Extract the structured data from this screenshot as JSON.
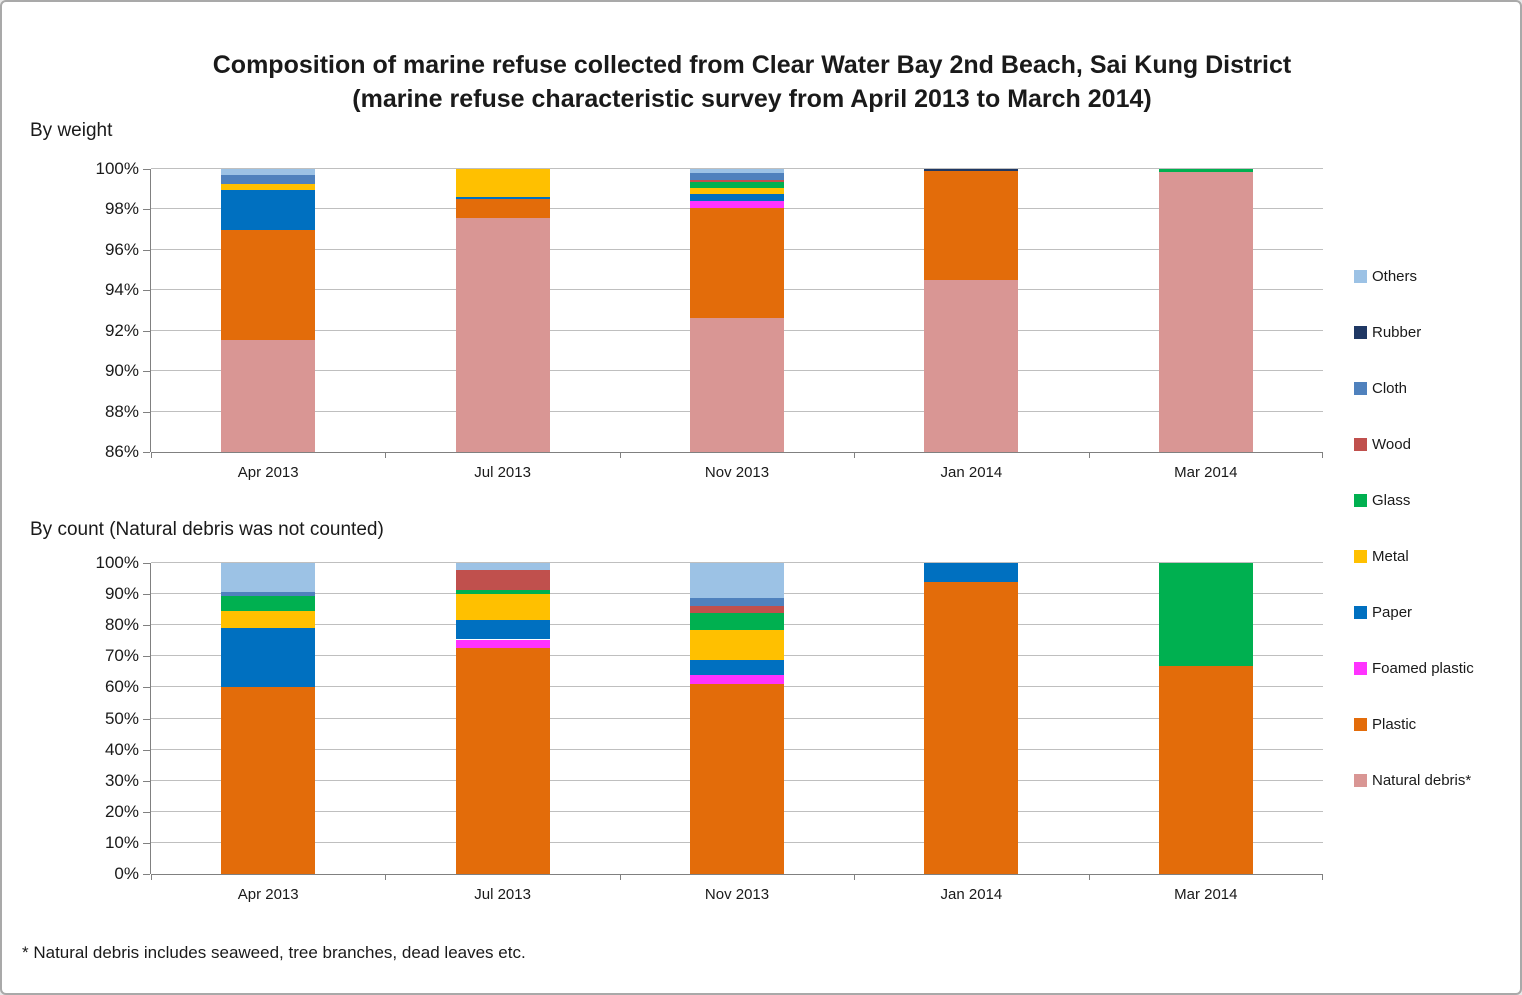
{
  "title": {
    "line1": "Composition of marine refuse collected from Clear Water Bay 2nd Beach, Sai Kung District",
    "line2": "(marine refuse characteristic survey from April 2013 to March 2014)"
  },
  "footnote": "* Natural debris includes seaweed, tree branches, dead leaves etc.",
  "colors": {
    "others": "#9CC2E5",
    "rubber": "#1F3864",
    "cloth": "#4F81BD",
    "wood": "#C0504D",
    "glass": "#00B050",
    "metal": "#FFC000",
    "paper": "#0070C0",
    "foamed_plastic": "#FF33FF",
    "plastic": "#E36C0A",
    "natural_debris": "#D99694",
    "gridline": "#BFBFBF",
    "axis": "#808080"
  },
  "legend": [
    {
      "key": "others",
      "label": "Others",
      "color": "#9CC2E5"
    },
    {
      "key": "rubber",
      "label": "Rubber",
      "color": "#1F3864"
    },
    {
      "key": "cloth",
      "label": "Cloth",
      "color": "#4F81BD"
    },
    {
      "key": "wood",
      "label": "Wood",
      "color": "#C0504D"
    },
    {
      "key": "glass",
      "label": "Glass",
      "color": "#00B050"
    },
    {
      "key": "metal",
      "label": "Metal",
      "color": "#FFC000"
    },
    {
      "key": "paper",
      "label": "Paper",
      "color": "#0070C0"
    },
    {
      "key": "foamed_plastic",
      "label": "Foamed plastic",
      "color": "#FF33FF"
    },
    {
      "key": "plastic",
      "label": "Plastic",
      "color": "#E36C0A"
    },
    {
      "key": "natural_debris",
      "label": "Natural debris*",
      "color": "#D99694"
    }
  ],
  "chart_data": [
    {
      "type": "bar",
      "stacked": true,
      "title": "By weight",
      "categories": [
        "Apr 2013",
        "Jul 2013",
        "Nov 2013",
        "Jan 2014",
        "Mar 2014"
      ],
      "ylim": [
        86,
        100
      ],
      "ytick_step": 2,
      "yticklabels": [
        "86%",
        "88%",
        "90%",
        "92%",
        "94%",
        "96%",
        "98%",
        "100%"
      ],
      "grid": true,
      "legend_position": "right",
      "units": "% of total weight",
      "series": [
        {
          "key": "natural_debris",
          "name": "Natural debris*",
          "color": "#D99694",
          "values": [
            91.55,
            97.6,
            92.65,
            94.5,
            99.85
          ]
        },
        {
          "key": "plastic",
          "name": "Plastic",
          "color": "#E36C0A",
          "values": [
            5.45,
            0.9,
            5.4,
            5.4,
            0
          ]
        },
        {
          "key": "foamed_plastic",
          "name": "Foamed plastic",
          "color": "#FF33FF",
          "values": [
            0,
            0,
            0.37,
            0,
            0
          ]
        },
        {
          "key": "paper",
          "name": "Paper",
          "color": "#0070C0",
          "values": [
            1.95,
            0.1,
            0.32,
            0,
            0
          ]
        },
        {
          "key": "metal",
          "name": "Metal",
          "color": "#FFC000",
          "values": [
            0.3,
            1.4,
            0.3,
            0,
            0
          ]
        },
        {
          "key": "glass",
          "name": "Glass",
          "color": "#00B050",
          "values": [
            0,
            0,
            0.3,
            0,
            0.15
          ]
        },
        {
          "key": "wood",
          "name": "Wood",
          "color": "#C0504D",
          "values": [
            0,
            0,
            0.12,
            0,
            0
          ]
        },
        {
          "key": "cloth",
          "name": "Cloth",
          "color": "#4F81BD",
          "values": [
            0.45,
            0,
            0.32,
            0,
            0
          ]
        },
        {
          "key": "rubber",
          "name": "Rubber",
          "color": "#1F3864",
          "values": [
            0,
            0,
            0,
            0.1,
            0
          ]
        },
        {
          "key": "others",
          "name": "Others",
          "color": "#9CC2E5",
          "values": [
            0.3,
            0,
            0.22,
            0,
            0
          ]
        }
      ]
    },
    {
      "type": "bar",
      "stacked": true,
      "title": "By count (Natural debris was not counted)",
      "categories": [
        "Apr 2013",
        "Jul 2013",
        "Nov 2013",
        "Jan 2014",
        "Mar 2014"
      ],
      "ylim": [
        0,
        100
      ],
      "ytick_step": 10,
      "yticklabels": [
        "0%",
        "10%",
        "20%",
        "30%",
        "40%",
        "50%",
        "60%",
        "70%",
        "80%",
        "90%",
        "100%"
      ],
      "grid": true,
      "legend_position": "right",
      "units": "% of total count",
      "series": [
        {
          "key": "natural_debris",
          "name": "Natural debris*",
          "color": "#D99694",
          "values": [
            0,
            0,
            0,
            0,
            0
          ]
        },
        {
          "key": "plastic",
          "name": "Plastic",
          "color": "#E36C0A",
          "values": [
            60.0,
            72.8,
            61.2,
            94.0,
            67.0
          ]
        },
        {
          "key": "foamed_plastic",
          "name": "Foamed plastic",
          "color": "#FF33FF",
          "values": [
            0,
            2.6,
            2.7,
            0,
            0
          ]
        },
        {
          "key": "paper",
          "name": "Paper",
          "color": "#0070C0",
          "values": [
            19.1,
            6.4,
            4.9,
            6.0,
            0
          ]
        },
        {
          "key": "metal",
          "name": "Metal",
          "color": "#FFC000",
          "values": [
            5.4,
            8.1,
            9.8,
            0,
            0
          ]
        },
        {
          "key": "glass",
          "name": "Glass",
          "color": "#00B050",
          "values": [
            4.8,
            1.3,
            5.4,
            0,
            33.0
          ]
        },
        {
          "key": "wood",
          "name": "Wood",
          "color": "#C0504D",
          "values": [
            0,
            6.6,
            2.3,
            0,
            0
          ]
        },
        {
          "key": "cloth",
          "name": "Cloth",
          "color": "#4F81BD",
          "values": [
            1.4,
            0,
            2.4,
            0,
            0
          ]
        },
        {
          "key": "rubber",
          "name": "Rubber",
          "color": "#1F3864",
          "values": [
            0,
            0,
            0,
            0,
            0
          ]
        },
        {
          "key": "others",
          "name": "Others",
          "color": "#9CC2E5",
          "values": [
            9.3,
            2.2,
            11.3,
            0,
            0
          ]
        }
      ]
    }
  ]
}
